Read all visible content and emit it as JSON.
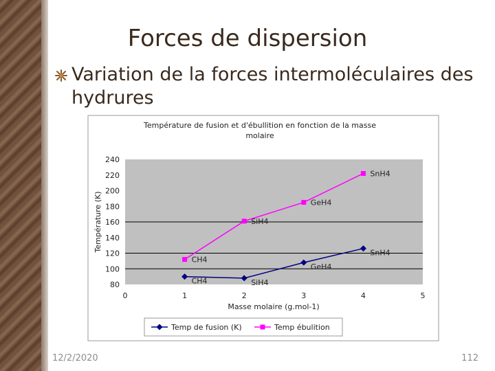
{
  "slide": {
    "title": "Forces de dispersion",
    "bullet": "Variation de la forces intermoléculaires des hydrures",
    "date": "12/2/2020",
    "page_number": "112"
  },
  "colors": {
    "fusion_series": "#000080",
    "ebullition_series": "#ff00ff",
    "plot_background": "#c0c0c0"
  },
  "chart_data": {
    "type": "line",
    "title": "Température de fusion et d'ébullition en fonction de la masse molaire",
    "title_lines": [
      "Température de fusion et d'ébullition en fonction de la masse",
      "molaire"
    ],
    "xlabel": "Masse molaire (g.mol-1)",
    "ylabel": "Température (K)",
    "xlim": [
      0,
      5
    ],
    "ylim": [
      80,
      240
    ],
    "x_ticks": [
      "0",
      "1",
      "2",
      "3",
      "4",
      "5"
    ],
    "y_ticks": [
      "80",
      "100",
      "120",
      "140",
      "160",
      "180",
      "200",
      "220",
      "240"
    ],
    "gridlines_y": [
      100,
      120,
      160
    ],
    "legend_position": "bottom",
    "series": [
      {
        "name": "Temp de fusion (K)",
        "marker": "diamond",
        "color": "#000080",
        "points": [
          {
            "x": 1,
            "y": 90,
            "label": "CH4"
          },
          {
            "x": 2,
            "y": 88,
            "label": "SiH4"
          },
          {
            "x": 3,
            "y": 108,
            "label": "GeH4"
          },
          {
            "x": 4,
            "y": 126,
            "label": "SnH4"
          }
        ]
      },
      {
        "name": "Temp ébulition",
        "marker": "square",
        "color": "#ff00ff",
        "points": [
          {
            "x": 1,
            "y": 112,
            "label": "CH4"
          },
          {
            "x": 2,
            "y": 161,
            "label": "SiH4"
          },
          {
            "x": 3,
            "y": 185,
            "label": "GeH4"
          },
          {
            "x": 4,
            "y": 222,
            "label": "SnH4"
          }
        ]
      }
    ]
  }
}
